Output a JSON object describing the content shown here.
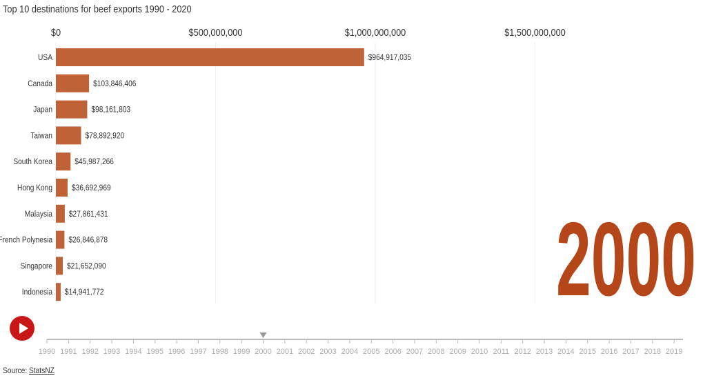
{
  "chart_data": {
    "type": "bar",
    "orientation": "horizontal",
    "subtitle": "Top 10 destinations for beef exports 1990 - 2020",
    "current_year": "2000",
    "categories": [
      "USA",
      "Canada",
      "Japan",
      "Taiwan",
      "South Korea",
      "Hong Kong",
      "Malaysia",
      "French Polynesia",
      "Singapore",
      "Indonesia"
    ],
    "values": [
      964917035,
      103846406,
      98161803,
      78892920,
      45987266,
      36692969,
      27861431,
      26846878,
      21652090,
      14941772
    ],
    "value_labels": [
      "$964,917,035",
      "$103,846,406",
      "$98,161,803",
      "$78,892,920",
      "$45,987,266",
      "$36,692,969",
      "$27,861,431",
      "$26,846,878",
      "$21,652,090",
      "$14,941,772"
    ],
    "xticks": [
      0,
      500000000,
      1000000000,
      1500000000
    ],
    "xtick_labels": [
      "$0",
      "$500,000,000",
      "$1,000,000,000",
      "$1,500,000,000"
    ],
    "xlim": [
      0,
      2000000000
    ],
    "bar_color": "#bf6238",
    "year_color": "#b5461a"
  },
  "timeline": {
    "years": [
      "1990",
      "1991",
      "1992",
      "1993",
      "1994",
      "1995",
      "1996",
      "1997",
      "1998",
      "1999",
      "2000",
      "2001",
      "2002",
      "2003",
      "2004",
      "2005",
      "2006",
      "2007",
      "2008",
      "2009",
      "2010",
      "2011",
      "2012",
      "2013",
      "2014",
      "2015",
      "2016",
      "2017",
      "2018",
      "2019"
    ],
    "selected": "2000"
  },
  "source": {
    "label": "Source:",
    "link": "StatsNZ"
  }
}
